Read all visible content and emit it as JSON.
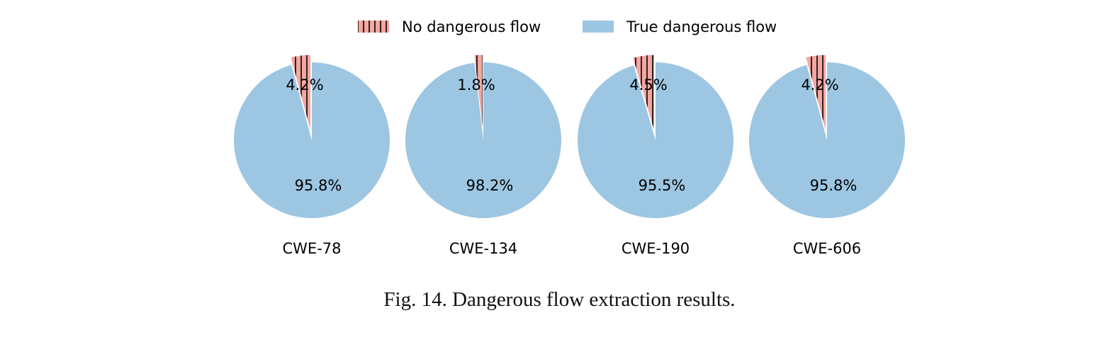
{
  "figure": {
    "caption": "Fig. 14.  Dangerous flow extraction results."
  },
  "chart_data": {
    "type": "pie",
    "legend": {
      "placement": "top-center",
      "entries": [
        {
          "label": "No dangerous flow",
          "color": "#f4a6a0",
          "hatch": "vertical-lines"
        },
        {
          "label": "True dangerous flow",
          "color": "#9dc6e2",
          "hatch": "none"
        }
      ]
    },
    "series_names": [
      "No dangerous flow",
      "True dangerous flow"
    ],
    "pies": [
      {
        "label": "CWE-78",
        "values": [
          4.2,
          95.8
        ],
        "value_labels": [
          "4.2%",
          "95.8%"
        ]
      },
      {
        "label": "CWE-134",
        "values": [
          1.8,
          98.2
        ],
        "value_labels": [
          "1.8%",
          "98.2%"
        ]
      },
      {
        "label": "CWE-190",
        "values": [
          4.5,
          95.5
        ],
        "value_labels": [
          "4.5%",
          "95.5%"
        ]
      },
      {
        "label": "CWE-606",
        "values": [
          4.2,
          95.8
        ],
        "value_labels": [
          "4.2%",
          "95.8%"
        ]
      }
    ]
  }
}
